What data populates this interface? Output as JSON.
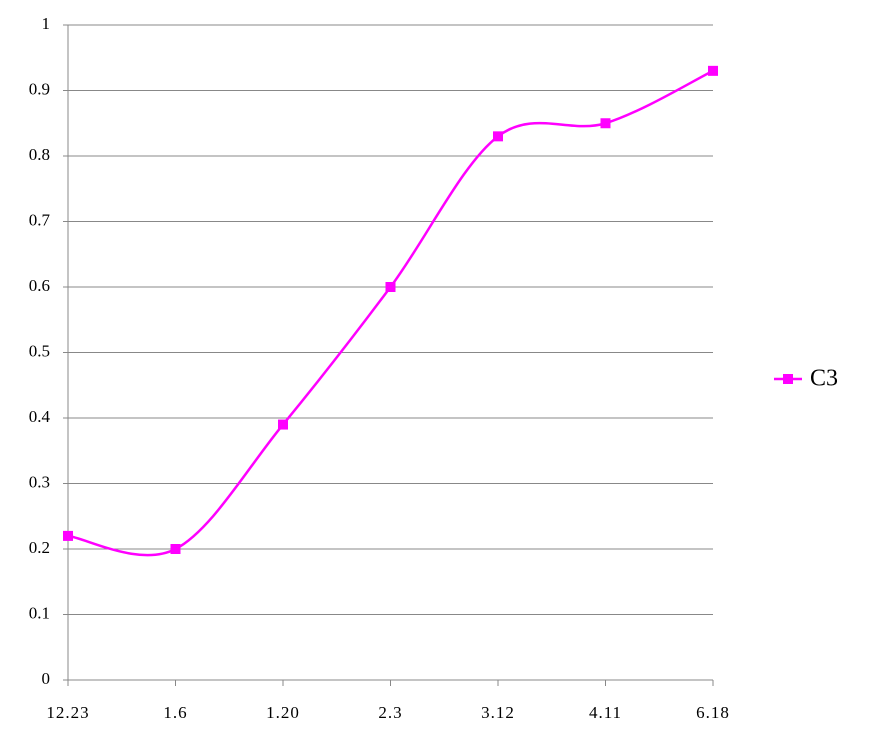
{
  "chart_data": {
    "type": "line",
    "categories": [
      "12.23",
      "1.6",
      "1.20",
      "2.3",
      "3.12",
      "4.11",
      "6.18"
    ],
    "series": [
      {
        "name": "C3",
        "color": "#ff00ff",
        "values": [
          0.22,
          0.2,
          0.39,
          0.6,
          0.83,
          0.85,
          0.93
        ]
      }
    ],
    "ylim": [
      0,
      1
    ],
    "yticks": [
      0,
      0.1,
      0.2,
      0.3,
      0.4,
      0.5,
      0.6,
      0.7,
      0.8,
      0.9,
      1
    ],
    "grid": true,
    "smooth": true,
    "legend": "right"
  }
}
